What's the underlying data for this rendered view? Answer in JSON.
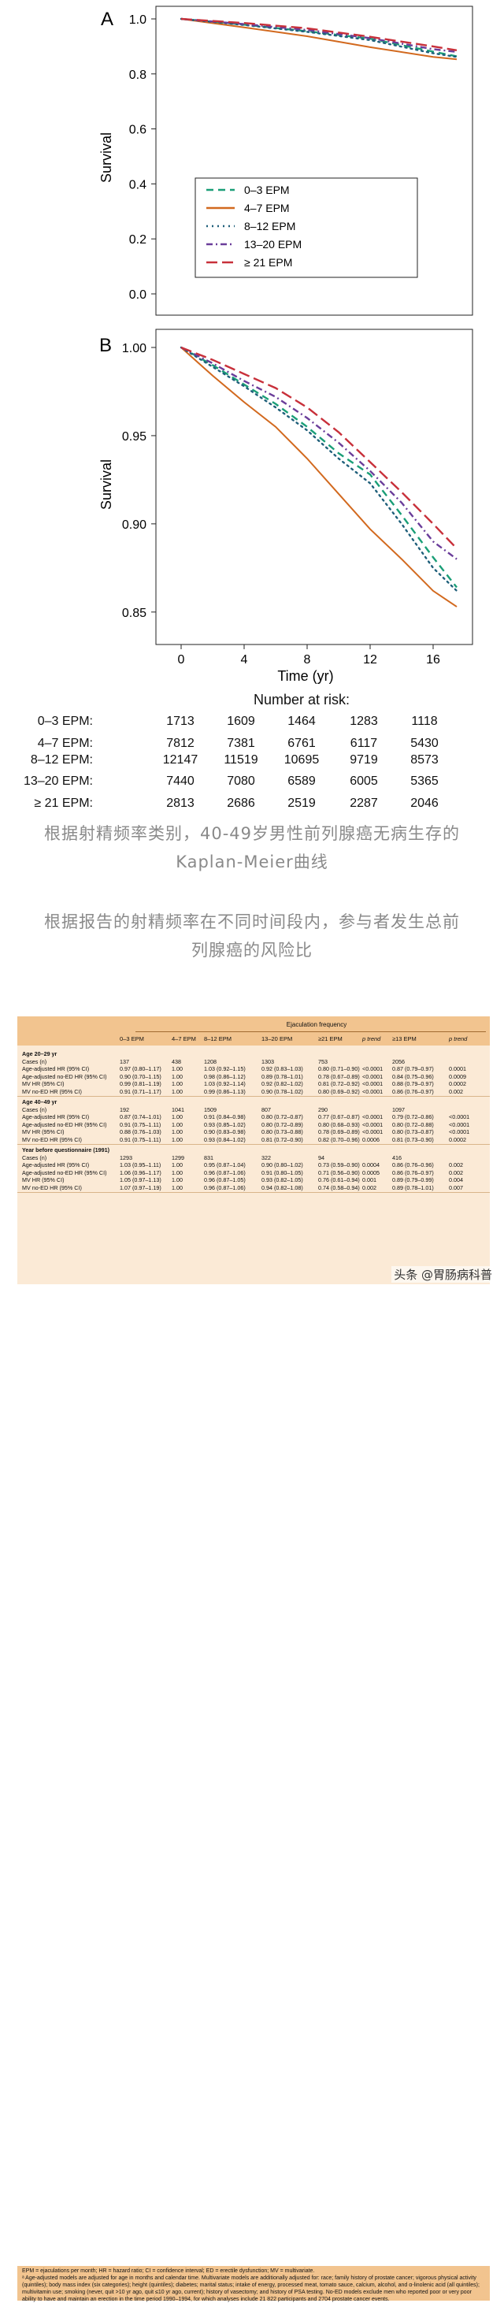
{
  "chart_data": [
    {
      "type": "line",
      "panel_label": "A",
      "ylabel": "Survival",
      "xlabel": "",
      "ylim": [
        0.0,
        1.0
      ],
      "yticks": [
        "0.0",
        "0.2",
        "0.4",
        "0.6",
        "0.8",
        "1.0"
      ],
      "xlim": [
        0,
        17.5
      ],
      "legend_position": "center",
      "series": [
        {
          "name": "0–3 EPM",
          "color": "#1a9e77",
          "style": "dashed",
          "x": [
            0,
            4,
            8,
            12,
            16,
            17.5
          ],
          "y": [
            1.0,
            0.979,
            0.955,
            0.928,
            0.881,
            0.864
          ]
        },
        {
          "name": "4–7 EPM",
          "color": "#d2691e",
          "style": "solid",
          "x": [
            0,
            4,
            8,
            12,
            16,
            17.5
          ],
          "y": [
            1.0,
            0.969,
            0.937,
            0.897,
            0.862,
            0.853
          ]
        },
        {
          "name": "8–12 EPM",
          "color": "#1f5f7a",
          "style": "dotted",
          "x": [
            0,
            4,
            8,
            12,
            16,
            17.5
          ],
          "y": [
            1.0,
            0.978,
            0.953,
            0.923,
            0.875,
            0.862
          ]
        },
        {
          "name": "13–20 EPM",
          "color": "#6a3d9a",
          "style": "dashdot",
          "x": [
            0,
            4,
            8,
            12,
            16,
            17.5
          ],
          "y": [
            1.0,
            0.981,
            0.96,
            0.93,
            0.89,
            0.88
          ]
        },
        {
          "name": "≥ 21 EPM",
          "color": "#c8303a",
          "style": "longdash",
          "x": [
            0,
            4,
            8,
            12,
            16,
            17.5
          ],
          "y": [
            1.0,
            0.985,
            0.966,
            0.935,
            0.9,
            0.886
          ]
        }
      ]
    },
    {
      "type": "line",
      "panel_label": "B",
      "ylabel": "Survival",
      "xlabel": "Time (yr)",
      "ylim": [
        0.845,
        1.0
      ],
      "yticks": [
        "0.85",
        "0.90",
        "0.95",
        "1.00"
      ],
      "xticks": [
        "0",
        "4",
        "8",
        "12",
        "16"
      ],
      "xlim": [
        0,
        17.5
      ],
      "series": [
        {
          "name": "0–3 EPM",
          "color": "#1a9e77",
          "style": "dashed",
          "x": [
            0,
            2,
            4,
            6,
            8,
            10,
            12,
            14,
            16,
            17.5
          ],
          "y": [
            1.0,
            0.99,
            0.979,
            0.968,
            0.955,
            0.94,
            0.928,
            0.905,
            0.881,
            0.864
          ]
        },
        {
          "name": "4–7 EPM",
          "color": "#d2691e",
          "style": "solid",
          "x": [
            0,
            2,
            4,
            6,
            8,
            10,
            12,
            14,
            16,
            17.5
          ],
          "y": [
            1.0,
            0.984,
            0.969,
            0.955,
            0.937,
            0.917,
            0.897,
            0.88,
            0.862,
            0.853
          ]
        },
        {
          "name": "8–12 EPM",
          "color": "#1f5f7a",
          "style": "dotted",
          "x": [
            0,
            2,
            4,
            6,
            8,
            10,
            12,
            14,
            16,
            17.5
          ],
          "y": [
            1.0,
            0.989,
            0.978,
            0.966,
            0.953,
            0.937,
            0.923,
            0.9,
            0.875,
            0.862
          ]
        },
        {
          "name": "13–20 EPM",
          "color": "#6a3d9a",
          "style": "dashdot",
          "x": [
            0,
            2,
            4,
            6,
            8,
            10,
            12,
            14,
            16,
            17.5
          ],
          "y": [
            1.0,
            0.991,
            0.981,
            0.972,
            0.96,
            0.946,
            0.93,
            0.912,
            0.89,
            0.88
          ]
        },
        {
          "name": "≥ 21 EPM",
          "color": "#c8303a",
          "style": "longdash",
          "x": [
            0,
            2,
            4,
            6,
            8,
            10,
            12,
            14,
            16,
            17.5
          ],
          "y": [
            1.0,
            0.993,
            0.985,
            0.977,
            0.966,
            0.952,
            0.935,
            0.918,
            0.9,
            0.886
          ]
        }
      ]
    }
  ],
  "risk_table": {
    "title": "Number at risk:",
    "rows": [
      {
        "label": "0–3 EPM:",
        "values": [
          "1713",
          "1609",
          "1464",
          "1283",
          "1118"
        ]
      },
      {
        "label": "4–7 EPM:",
        "values": [
          "7812",
          "7381",
          "6761",
          "6117",
          "5430"
        ]
      },
      {
        "label": "8–12 EPM:",
        "values": [
          "12147",
          "11519",
          "10695",
          "9719",
          "8573"
        ]
      },
      {
        "label": "13–20 EPM:",
        "values": [
          "7440",
          "7080",
          "6589",
          "6005",
          "5365"
        ]
      },
      {
        "label": "≥ 21 EPM:",
        "values": [
          "2813",
          "2686",
          "2519",
          "2287",
          "2046"
        ]
      }
    ]
  },
  "captions": {
    "caption1_line1": "根据射精频率类别，40-49岁男性前列腺癌无病生存的",
    "caption1_line2": "Kaplan-Meier曲线",
    "caption2_line1": "根据报告的射精频率在不同时间段内，参与者发生总前",
    "caption2_line2": "列腺癌的风险比"
  },
  "hr_table": {
    "group_header": "Ejaculation frequency",
    "columns": [
      "",
      "0–3 EPM",
      "4–7 EPM",
      "8–12 EPM",
      "13–20 EPM",
      "≥21 EPM",
      "p trend",
      "≥13 EPM",
      "p trend"
    ],
    "sections": [
      {
        "title": "Age 20–29 yr",
        "rows": [
          [
            "Cases (n)",
            "137",
            "438",
            "1208",
            "1303",
            "753",
            "",
            "2056",
            ""
          ],
          [
            "Age-adjusted HR (95% CI)",
            "0.97 (0.80–1.17)",
            "1.00",
            "1.03 (0.92–1.15)",
            "0.92 (0.83–1.03)",
            "0.80 (0.71–0.90)",
            "<0.0001",
            "0.87 (0.79–0.97)",
            "0.0001"
          ],
          [
            "Age-adjusted no-ED HR (95% CI)",
            "0.90 (0.70–1.15)",
            "1.00",
            "0.98 (0.86–1.12)",
            "0.89 (0.78–1.01)",
            "0.78 (0.67–0.89)",
            "<0.0001",
            "0.84 (0.75–0.96)",
            "0.0009"
          ],
          [
            "MV HR (95% CI)",
            "0.99 (0.81–1.19)",
            "1.00",
            "1.03 (0.92–1.14)",
            "0.92 (0.82–1.02)",
            "0.81 (0.72–0.92)",
            "<0.0001",
            "0.88 (0.79–0.97)",
            "0.0002"
          ],
          [
            "MV no-ED HR (95% CI)",
            "0.91 (0.71–1.17)",
            "1.00",
            "0.99 (0.86–1.13)",
            "0.90 (0.78–1.02)",
            "0.80 (0.69–0.92)",
            "<0.0001",
            "0.86 (0.76–0.97)",
            "0.002"
          ]
        ]
      },
      {
        "title": "Age 40–49 yr",
        "rows": [
          [
            "Cases (n)",
            "192",
            "1041",
            "1509",
            "807",
            "290",
            "",
            "1097",
            ""
          ],
          [
            "Age-adjusted HR (95% CI)",
            "0.87 (0.74–1.01)",
            "1.00",
            "0.91 (0.84–0.98)",
            "0.80 (0.72–0.87)",
            "0.77 (0.67–0.87)",
            "<0.0001",
            "0.79 (0.72–0.86)",
            "<0.0001"
          ],
          [
            "Age-adjusted no-ED HR (95% CI)",
            "0.91 (0.75–1.11)",
            "1.00",
            "0.93 (0.85–1.02)",
            "0.80 (0.72–0.89)",
            "0.80 (0.68–0.93)",
            "<0.0001",
            "0.80 (0.72–0.88)",
            "<0.0001"
          ],
          [
            "MV HR (95% CI)",
            "0.88 (0.76–1.03)",
            "1.00",
            "0.90 (0.83–0.98)",
            "0.80 (0.73–0.88)",
            "0.78 (0.69–0.89)",
            "<0.0001",
            "0.80 (0.73–0.87)",
            "<0.0001"
          ],
          [
            "MV no-ED HR (95% CI)",
            "0.91 (0.75–1.11)",
            "1.00",
            "0.93 (0.84–1.02)",
            "0.81 (0.72–0.90)",
            "0.82 (0.70–0.96)",
            "0.0006",
            "0.81 (0.73–0.90)",
            "0.0002"
          ]
        ]
      },
      {
        "title": "Year before questionnaire (1991)",
        "rows": [
          [
            "Cases (n)",
            "1293",
            "1299",
            "831",
            "322",
            "94",
            "",
            "416",
            ""
          ],
          [
            "Age-adjusted HR (95% CI)",
            "1.03 (0.95–1.11)",
            "1.00",
            "0.95 (0.87–1.04)",
            "0.90 (0.80–1.02)",
            "0.73 (0.59–0.90)",
            "0.0004",
            "0.86 (0.76–0.96)",
            "0.002"
          ],
          [
            "Age-adjusted no-ED HR (95% CI)",
            "1.06 (0.96–1.17)",
            "1.00",
            "0.96 (0.87–1.06)",
            "0.91 (0.80–1.05)",
            "0.71 (0.56–0.90)",
            "0.0005",
            "0.86 (0.76–0.97)",
            "0.002"
          ],
          [
            "MV HR (95% CI)",
            "1.05 (0.97–1.13)",
            "1.00",
            "0.96 (0.87–1.05)",
            "0.93 (0.82–1.05)",
            "0.76 (0.61–0.94)",
            "0.001",
            "0.89 (0.79–0.99)",
            "0.004"
          ],
          [
            "MV no-ED HR (95% CI)",
            "1.07 (0.97–1.19)",
            "1.00",
            "0.96 (0.87–1.06)",
            "0.94 (0.82–1.08)",
            "0.74 (0.58–0.94)",
            "0.002",
            "0.89 (0.78–1.01)",
            "0.007"
          ]
        ]
      }
    ],
    "footnote1": "EPM = ejaculations per month; HR = hazard ratio; CI = confidence interval; ED = erectile dysfunction; MV = multivariate.",
    "footnote2": "ᵃ Age-adjusted models are adjusted for age in months and calendar time. Multivariate models are additionally adjusted for: race; family history of prostate cancer; vigorous physical activity (quintiles); body mass index (six categories); height (quintiles); diabetes; marital status; intake of energy, processed meat, tomato sauce, calcium, alcohol, and α-linolenic acid (all quintiles); multivitamin use; smoking (never, quit >10 yr ago, quit ≤10 yr ago, current); history of vasectomy; and history of PSA testing. No-ED models exclude men who reported poor or very poor ability to have and maintain an erection in the time period 1990–1994, for which analyses include 21 822 participants and 2704 prostate cancer events."
  },
  "watermark": "头条 @胃肠病科普"
}
